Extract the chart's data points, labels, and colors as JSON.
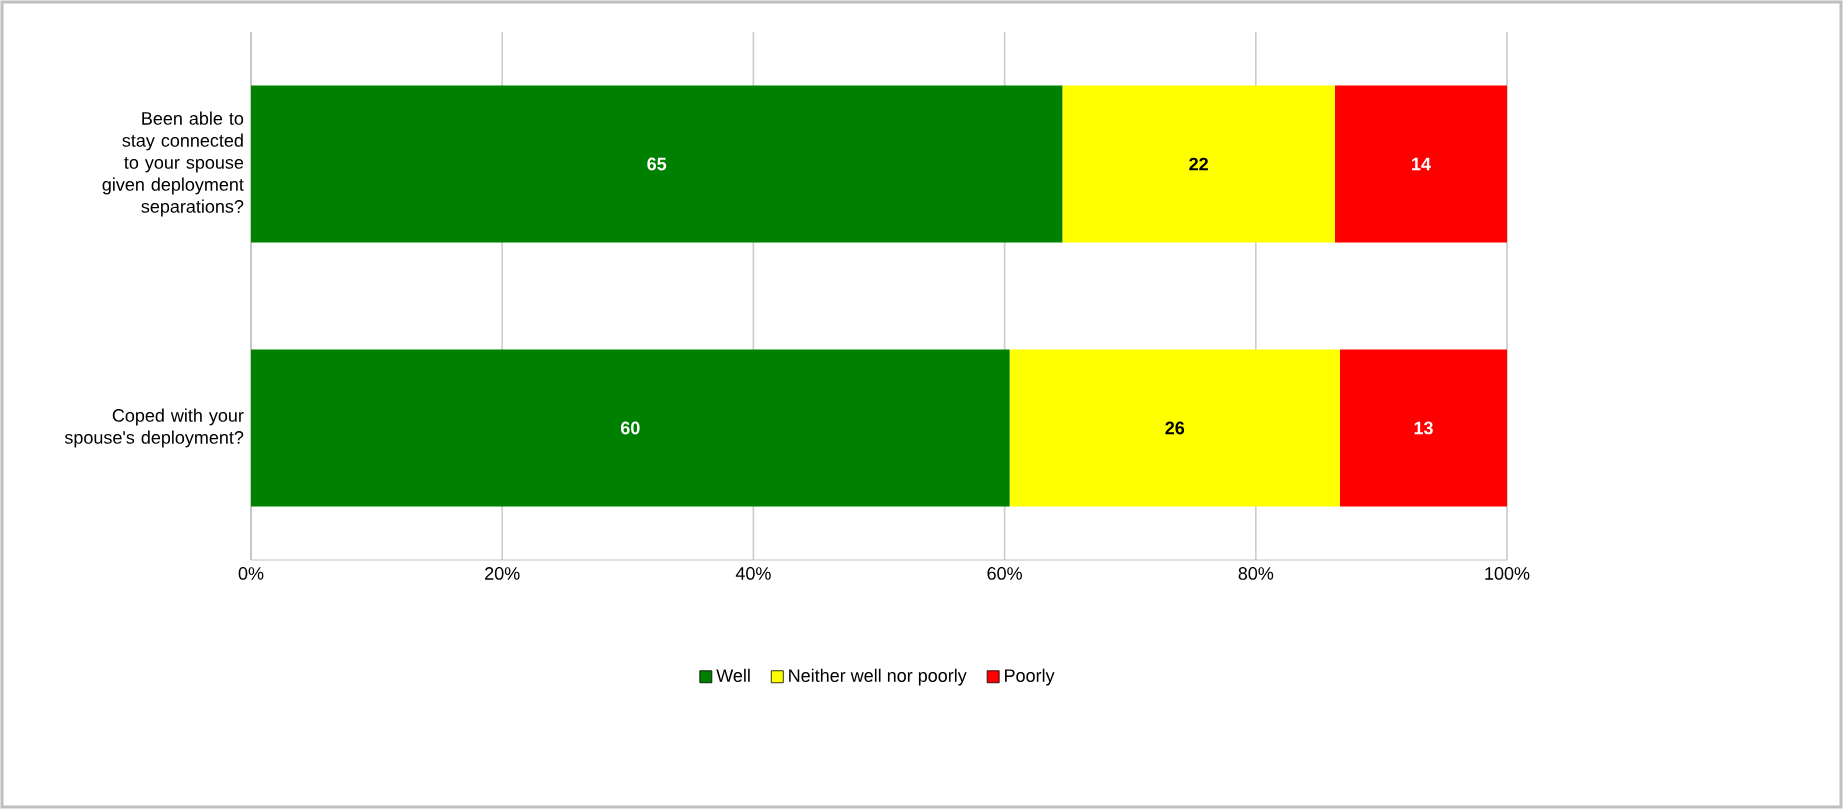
{
  "chart_data": {
    "type": "bar",
    "orientation": "horizontal",
    "stacked": true,
    "categories": [
      "Been able to stay connected to your spouse given deployment separations?",
      "Coped with your spouse's deployment?"
    ],
    "series": [
      {
        "name": "Well",
        "color": "#008000",
        "values": [
          64.6,
          60.4
        ],
        "value_labels": [
          "65",
          "60"
        ]
      },
      {
        "name": "Neither well nor poorly",
        "color": "#ffff00",
        "values": [
          21.7,
          26.3
        ],
        "value_labels": [
          "22",
          "26"
        ]
      },
      {
        "name": "Poorly",
        "color": "#ff0000",
        "values": [
          13.7,
          13.3
        ],
        "value_labels": [
          "14",
          "13"
        ]
      }
    ],
    "xlim": [
      0,
      100
    ],
    "xticks": [
      {
        "value": 0,
        "label": "0%"
      },
      {
        "value": 20,
        "label": "20%"
      },
      {
        "value": 40,
        "label": "40%"
      },
      {
        "value": 60,
        "label": "60%"
      },
      {
        "value": 80,
        "label": "80%"
      },
      {
        "value": 100,
        "label": "100%"
      }
    ],
    "grid": "x",
    "legend": "bottom"
  }
}
